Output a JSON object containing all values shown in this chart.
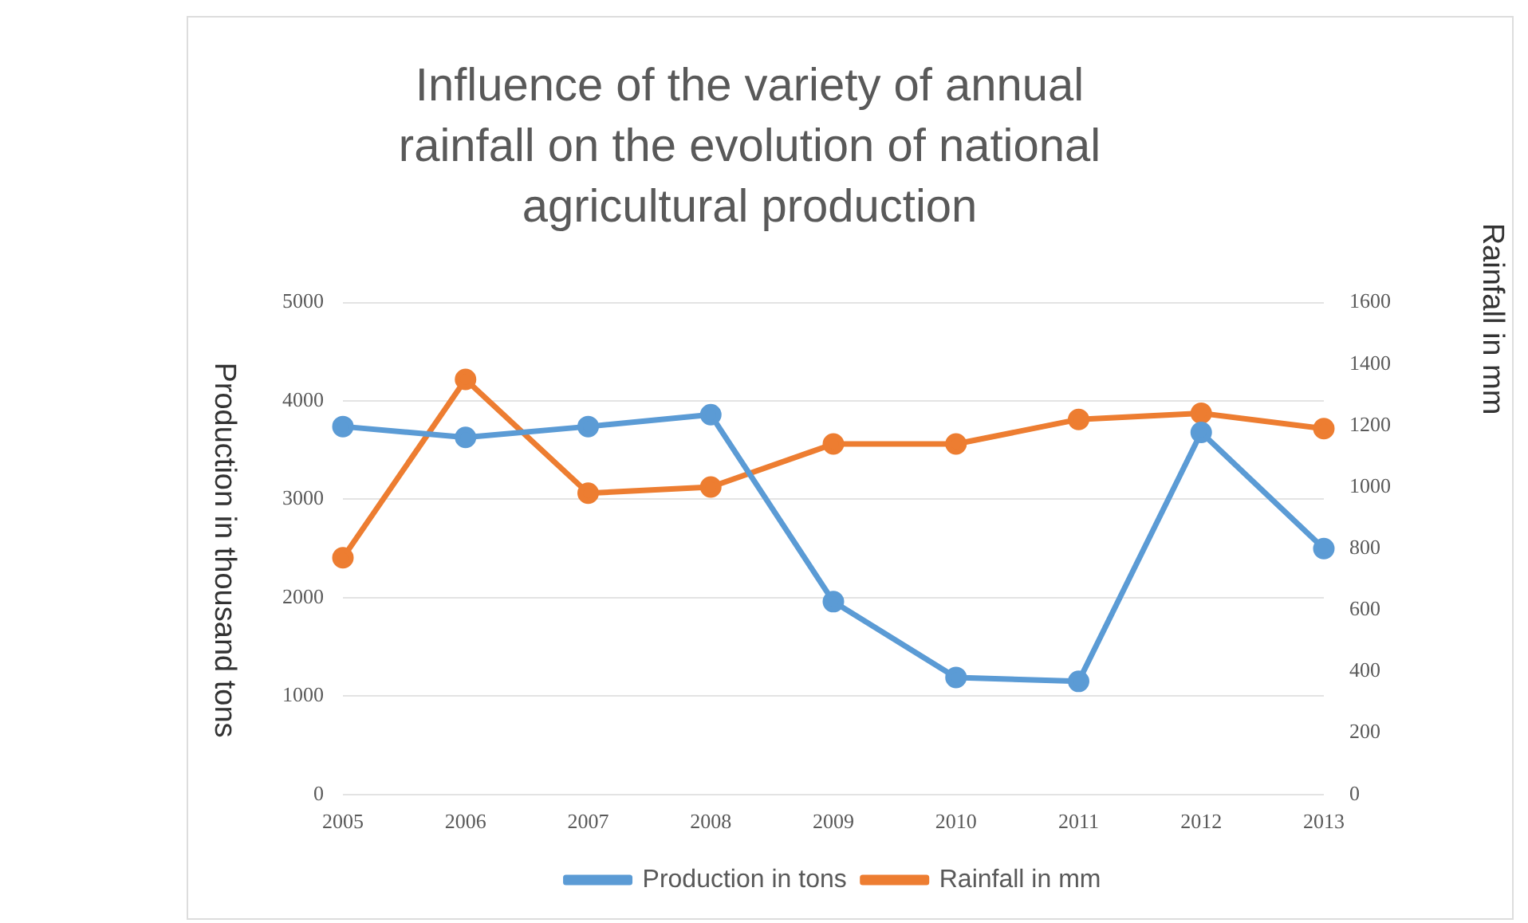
{
  "chart_data": {
    "type": "line",
    "title": "Influence of the variety of annual rainfall on the evolution of national agricultural production",
    "ylabel": "Production in thousand tons",
    "y2label": "Rainfall in mm",
    "categories": [
      "2005",
      "2006",
      "2007",
      "2008",
      "2009",
      "2010",
      "2011",
      "2012",
      "2013"
    ],
    "series": [
      {
        "name": "Production in tons",
        "color": "#5b9bd5",
        "values": [
          3740,
          3630,
          3740,
          3860,
          1960,
          1190,
          1150,
          3680,
          2500
        ]
      },
      {
        "name": "Rainfall in mm",
        "color": "#ed7d31",
        "axis": "y2",
        "values": [
          770,
          1350,
          980,
          1000,
          1140,
          1140,
          1220,
          1240,
          1190
        ]
      }
    ],
    "ylim": [
      0,
      5000
    ],
    "yticks": [
      0,
      1000,
      2000,
      3000,
      4000,
      5000
    ],
    "y2lim": [
      0,
      1600
    ],
    "y2ticks": [
      0,
      200,
      400,
      600,
      800,
      1000,
      1200,
      1400,
      1600
    ],
    "grid": "y",
    "legend": "bottom",
    "marker": "circle",
    "line_style": "solid"
  }
}
